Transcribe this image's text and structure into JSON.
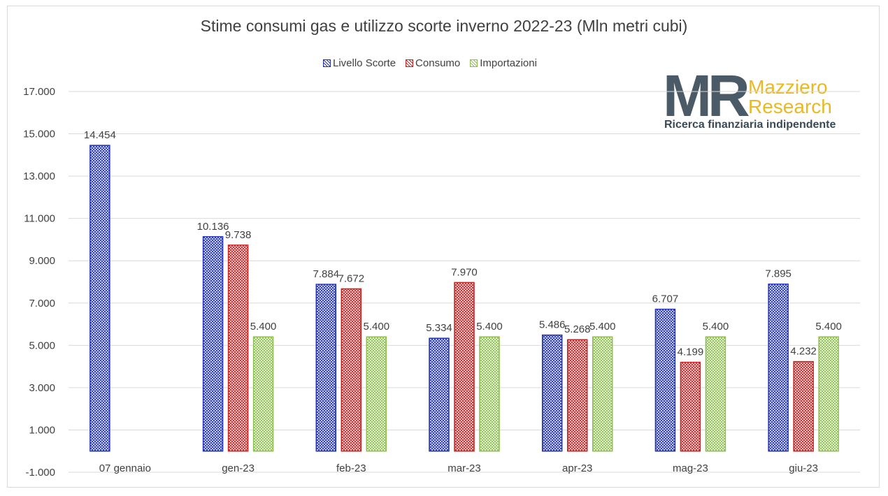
{
  "chart_data": {
    "type": "bar",
    "title": "Stime consumi gas e utilizzo scorte inverno 2022-23 (Mln metri cubi)",
    "xlabel": "",
    "ylabel": "",
    "categories": [
      "07 gennaio",
      "gen-23",
      "feb-23",
      "mar-23",
      "apr-23",
      "mag-23",
      "giu-23"
    ],
    "series": [
      {
        "name": "Livello Scorte",
        "color": "#2233bb",
        "values": [
          14454,
          10136,
          7884,
          5334,
          5486,
          6707,
          7895
        ],
        "labels": [
          "14.454",
          "10.136",
          "7.884",
          "5.334",
          "5.486",
          "6.707",
          "7.895"
        ]
      },
      {
        "name": "Consumo",
        "color": "#cc2222",
        "values": [
          null,
          9738,
          7672,
          7970,
          5268,
          4199,
          4232
        ],
        "labels": [
          "",
          "9.738",
          "7.672",
          "7.970",
          "5.268",
          "4.199",
          "4.232"
        ]
      },
      {
        "name": "Importazioni",
        "color": "#8fbf4f",
        "values": [
          null,
          5400,
          5400,
          5400,
          5400,
          5400,
          5400
        ],
        "labels": [
          "",
          "5.400",
          "5.400",
          "5.400",
          "5.400",
          "5.400",
          "5.400"
        ]
      }
    ],
    "ylim": [
      -1000,
      17000
    ],
    "yticks": [
      17000,
      15000,
      13000,
      11000,
      9000,
      7000,
      5000,
      3000,
      1000,
      -1000
    ],
    "ytick_labels": [
      "17.000",
      "15.000",
      "13.000",
      "11.000",
      "9.000",
      "7.000",
      "5.000",
      "3.000",
      "1.000",
      "-1.000"
    ],
    "grid": true,
    "legend_position": "top"
  },
  "logo": {
    "mark": "MR",
    "line1": "Mazziero",
    "line2": "Research",
    "tagline": "Ricerca finanziaria indipendente"
  }
}
